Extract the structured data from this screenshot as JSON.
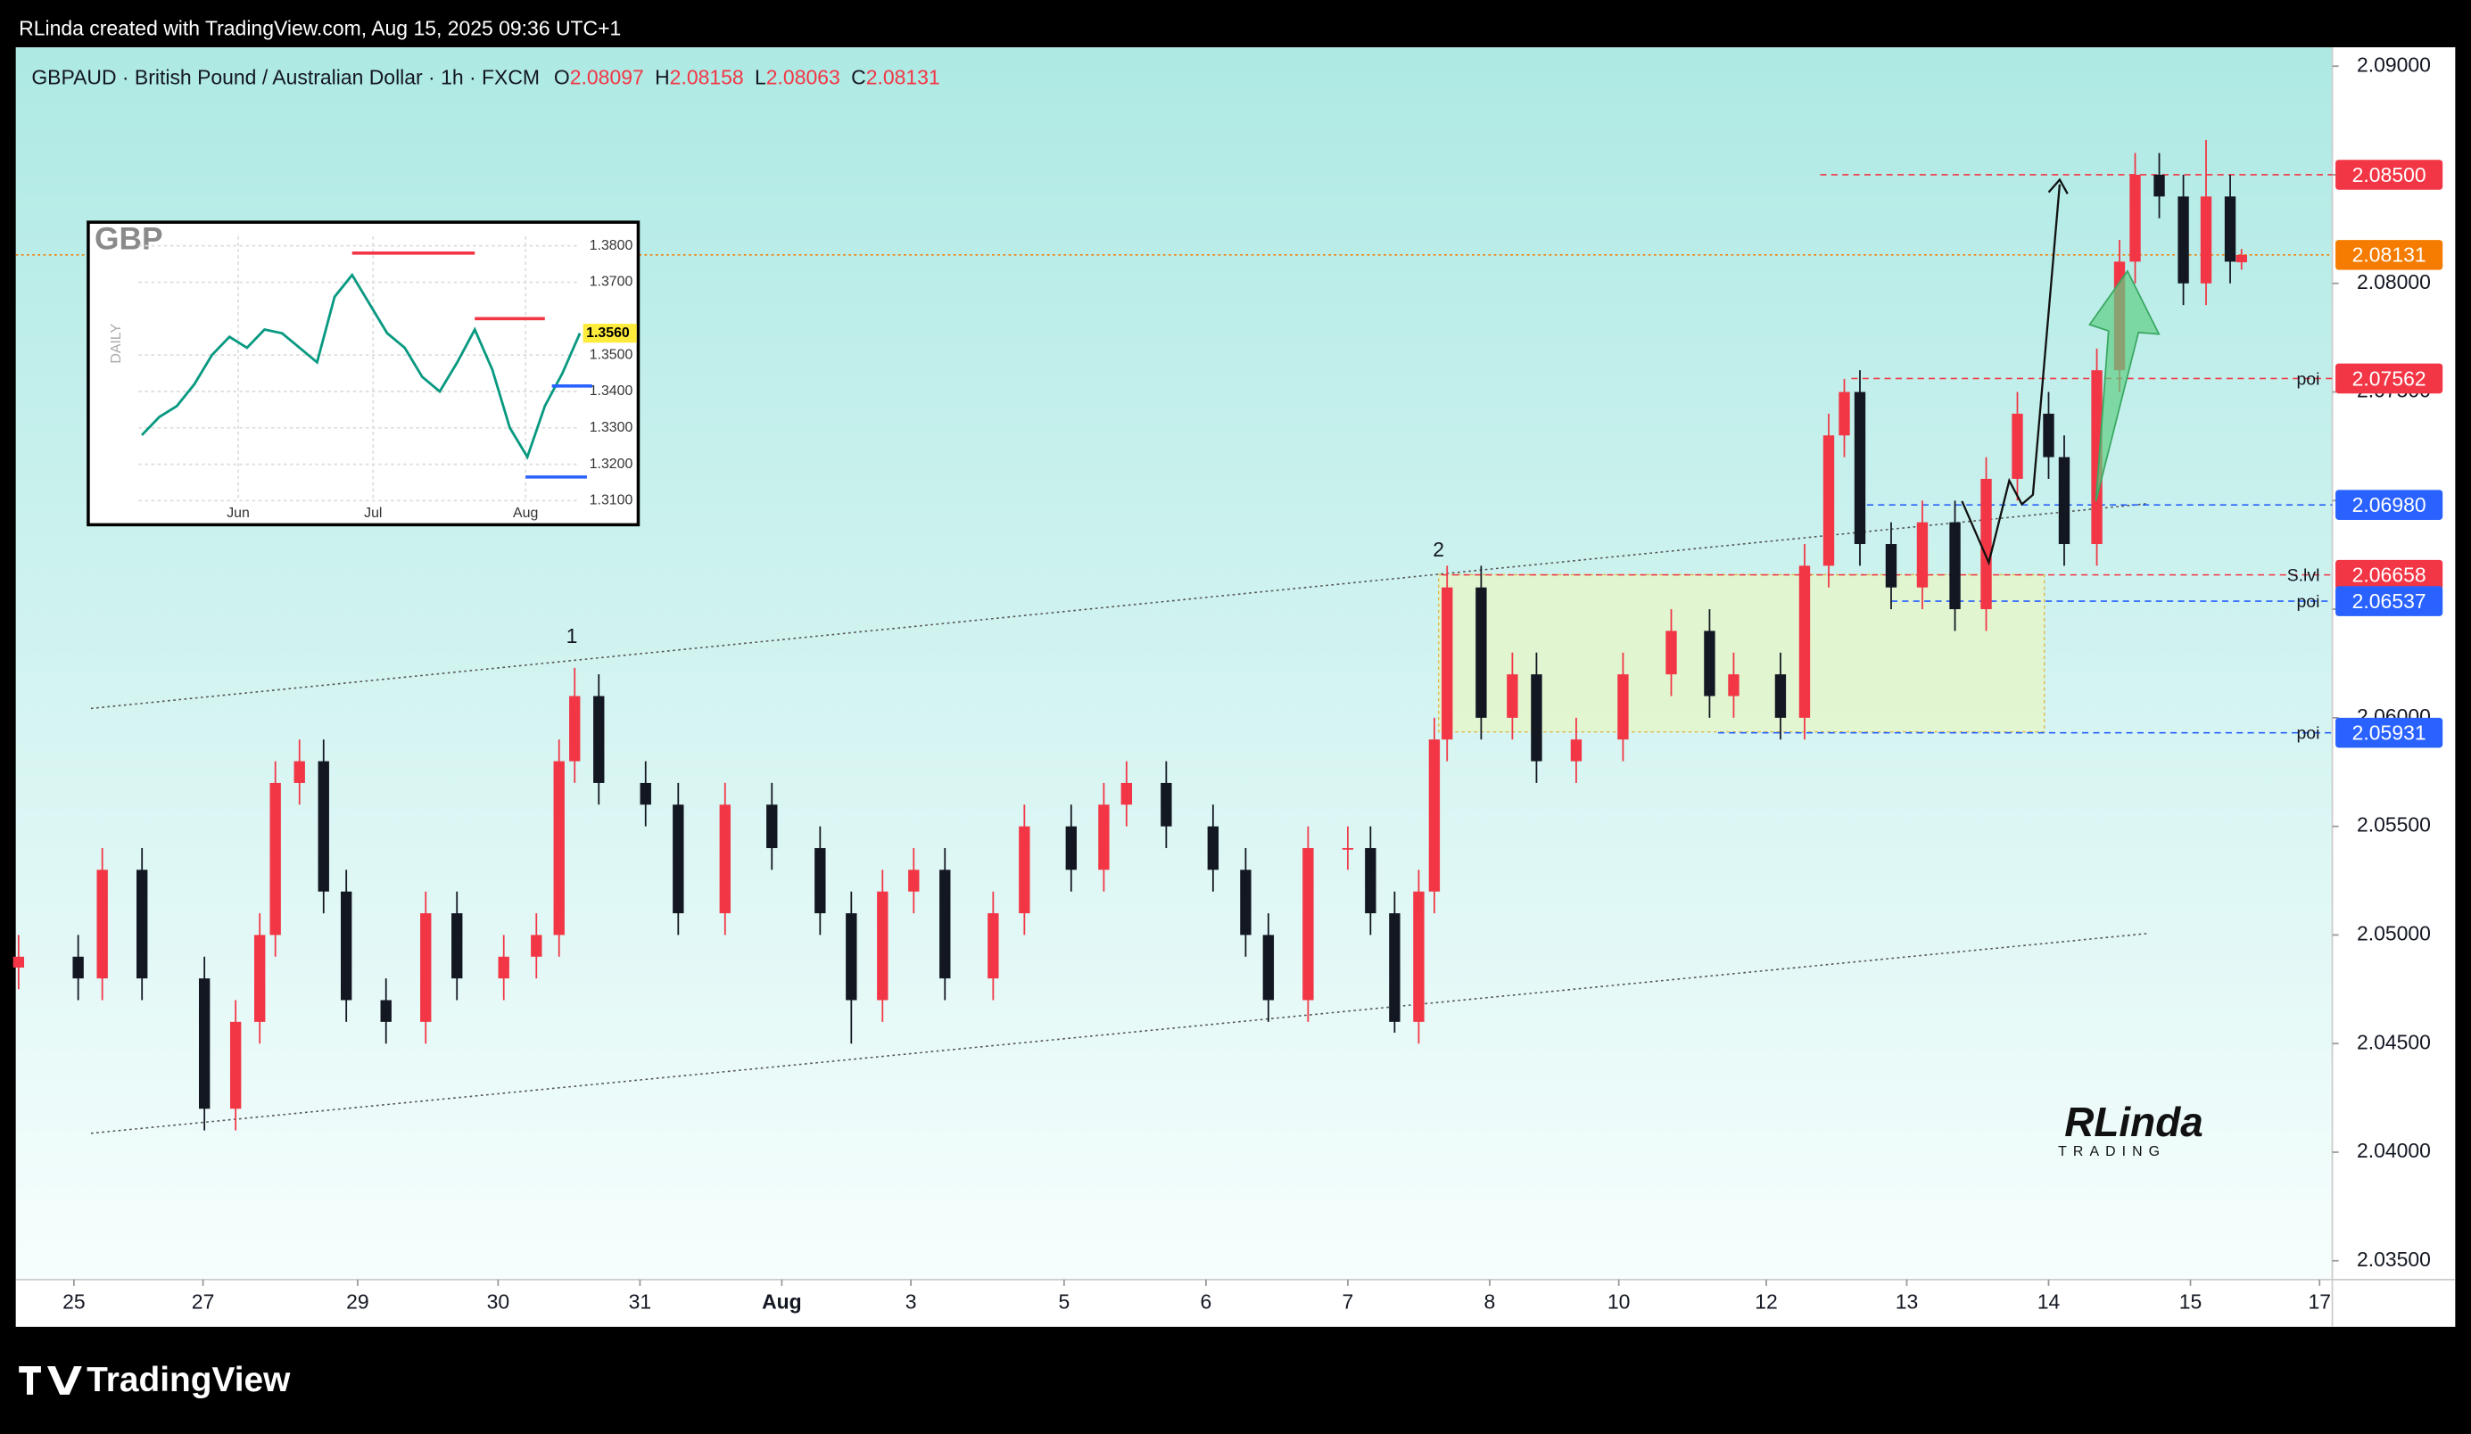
{
  "top_bar": "RLinda created with TradingView.com, Aug 15, 2025 09:36 UTC+1",
  "chart_data": {
    "type": "candlestick",
    "symbol": "GBPAUD · British Pound / Australian Dollar · 1h · FXCM",
    "legend_values": [
      {
        "key": "O",
        "value": "2.08097"
      },
      {
        "key": "H",
        "value": "2.08158"
      },
      {
        "key": "L",
        "value": "2.08063"
      },
      {
        "key": "C",
        "value": "2.08131"
      }
    ],
    "up_color": "#f23645",
    "down_color": "#131722",
    "x": [
      -0.39,
      0.03,
      0.2,
      0.48,
      0.92,
      1.14,
      1.31,
      1.42,
      1.59,
      1.76,
      1.92,
      2.2,
      2.48,
      2.7,
      3.03,
      3.26,
      3.42,
      3.53,
      3.7,
      4.03,
      4.26,
      4.59,
      4.92,
      5.26,
      5.48,
      5.7,
      5.92,
      6.14,
      6.48,
      6.7,
      7.03,
      7.26,
      7.42,
      7.7,
      8.03,
      8.26,
      8.42,
      8.7,
      8.98,
      9.14,
      9.31,
      9.48,
      9.59,
      9.68,
      9.92,
      10.14,
      10.31,
      10.59,
      10.92,
      11.26,
      11.53,
      11.7,
      12.03,
      12.2,
      12.37,
      12.48,
      12.59,
      12.81,
      13.03,
      13.26,
      13.48,
      13.7,
      13.92,
      14.03,
      14.26,
      14.42,
      14.53,
      14.7,
      14.87,
      15.03,
      15.2,
      15.28
    ],
    "open": [
      2.0485,
      2.049,
      2.048,
      2.053,
      2.048,
      2.042,
      2.046,
      2.05,
      2.057,
      2.058,
      2.052,
      2.047,
      2.046,
      2.051,
      2.048,
      2.049,
      2.05,
      2.058,
      2.061,
      2.057,
      2.056,
      2.051,
      2.056,
      2.054,
      2.051,
      2.047,
      2.052,
      2.053,
      2.048,
      2.051,
      2.055,
      2.053,
      2.056,
      2.057,
      2.055,
      2.053,
      2.05,
      2.047,
      2.054,
      2.054,
      2.051,
      2.046,
      2.052,
      2.059,
      2.066,
      2.06,
      2.062,
      2.058,
      2.059,
      2.062,
      2.064,
      2.061,
      2.062,
      2.06,
      2.067,
      2.073,
      2.075,
      2.068,
      2.066,
      2.069,
      2.065,
      2.071,
      2.074,
      2.072,
      2.068,
      2.076,
      2.081,
      2.085,
      2.084,
      2.08,
      2.084,
      2.08097
    ],
    "high": [
      2.05,
      2.05,
      2.054,
      2.054,
      2.049,
      2.047,
      2.051,
      2.058,
      2.059,
      2.059,
      2.053,
      2.048,
      2.052,
      2.052,
      2.05,
      2.051,
      2.059,
      2.0623,
      2.062,
      2.058,
      2.057,
      2.057,
      2.057,
      2.055,
      2.052,
      2.053,
      2.054,
      2.054,
      2.052,
      2.056,
      2.056,
      2.057,
      2.058,
      2.058,
      2.056,
      2.054,
      2.051,
      2.055,
      2.055,
      2.055,
      2.052,
      2.053,
      2.06,
      2.067,
      2.067,
      2.063,
      2.063,
      2.06,
      2.063,
      2.065,
      2.065,
      2.063,
      2.063,
      2.068,
      2.074,
      2.0756,
      2.076,
      2.069,
      2.07,
      2.07,
      2.072,
      2.075,
      2.075,
      2.073,
      2.077,
      2.082,
      2.086,
      2.086,
      2.085,
      2.0866,
      2.085,
      2.08158
    ],
    "low": [
      2.0475,
      2.047,
      2.047,
      2.047,
      2.041,
      2.041,
      2.045,
      2.049,
      2.056,
      2.051,
      2.046,
      2.045,
      2.045,
      2.047,
      2.047,
      2.048,
      2.049,
      2.057,
      2.056,
      2.055,
      2.05,
      2.05,
      2.053,
      2.05,
      2.045,
      2.046,
      2.051,
      2.047,
      2.047,
      2.05,
      2.052,
      2.052,
      2.055,
      2.054,
      2.052,
      2.049,
      2.046,
      2.046,
      2.053,
      2.05,
      2.0455,
      2.045,
      2.051,
      2.058,
      2.059,
      2.059,
      2.057,
      2.057,
      2.058,
      2.061,
      2.06,
      2.06,
      2.059,
      2.059,
      2.066,
      2.072,
      2.067,
      2.065,
      2.065,
      2.064,
      2.064,
      2.07,
      2.071,
      2.067,
      2.067,
      2.075,
      2.08,
      2.083,
      2.079,
      2.079,
      2.08,
      2.08063
    ],
    "close": [
      2.049,
      2.048,
      2.053,
      2.048,
      2.042,
      2.046,
      2.05,
      2.057,
      2.058,
      2.052,
      2.047,
      2.046,
      2.051,
      2.048,
      2.049,
      2.05,
      2.058,
      2.061,
      2.057,
      2.056,
      2.051,
      2.056,
      2.054,
      2.051,
      2.047,
      2.052,
      2.053,
      2.048,
      2.051,
      2.055,
      2.053,
      2.056,
      2.057,
      2.055,
      2.053,
      2.05,
      2.047,
      2.054,
      2.054,
      2.051,
      2.046,
      2.052,
      2.059,
      2.066,
      2.06,
      2.062,
      2.058,
      2.059,
      2.062,
      2.064,
      2.061,
      2.062,
      2.06,
      2.067,
      2.073,
      2.075,
      2.068,
      2.066,
      2.069,
      2.065,
      2.071,
      2.074,
      2.072,
      2.068,
      2.076,
      2.081,
      2.085,
      2.084,
      2.08,
      2.084,
      2.081,
      2.08131
    ],
    "xlim": [
      -0.41,
      15.92
    ],
    "xticks": [
      {
        "value": 0,
        "label": "25"
      },
      {
        "value": 0.91,
        "label": "27"
      },
      {
        "value": 2,
        "label": "29"
      },
      {
        "value": 2.99,
        "label": "30"
      },
      {
        "value": 3.99,
        "label": "31"
      },
      {
        "value": 4.99,
        "label": "Aug"
      },
      {
        "value": 5.9,
        "label": "3"
      },
      {
        "value": 6.98,
        "label": "5"
      },
      {
        "value": 7.98,
        "label": "6"
      },
      {
        "value": 8.98,
        "label": "7"
      },
      {
        "value": 9.98,
        "label": "8"
      },
      {
        "value": 10.89,
        "label": "10"
      },
      {
        "value": 11.93,
        "label": "12"
      },
      {
        "value": 12.92,
        "label": "13"
      },
      {
        "value": 13.92,
        "label": "14"
      },
      {
        "value": 14.92,
        "label": "15"
      },
      {
        "value": 15.83,
        "label": "17"
      }
    ],
    "ylim": [
      2.03428,
      2.09087
    ],
    "yticks": [
      {
        "value": 2.035,
        "label": "2.03500"
      },
      {
        "value": 2.04,
        "label": "2.04000"
      },
      {
        "value": 2.045,
        "label": "2.04500"
      },
      {
        "value": 2.05,
        "label": "2.05000"
      },
      {
        "value": 2.055,
        "label": "2.05500"
      },
      {
        "value": 2.06,
        "label": "2.06000"
      },
      {
        "value": 2.065,
        "label": "2.06500"
      },
      {
        "value": 2.07,
        "label": "2.07000"
      },
      {
        "value": 2.075,
        "label": "2.07500"
      },
      {
        "value": 2.08,
        "label": "2.08000"
      },
      {
        "value": 2.085,
        "label": "2.08500"
      },
      {
        "value": 2.09,
        "label": "2.09000"
      }
    ],
    "levels": [
      {
        "value": 2.085,
        "label": "2.08500",
        "color": "#f23645",
        "from": 12.31
      },
      {
        "value": 2.08131,
        "label": "2.08131",
        "color": "#f57c00",
        "from": -0.41
      },
      {
        "value": 2.07562,
        "label": "2.07562",
        "color": "#f23645",
        "from": 12.53,
        "note": "poi"
      },
      {
        "value": 2.0698,
        "label": "2.06980",
        "color": "#2962ff",
        "from": 12.64
      },
      {
        "value": 2.06658,
        "label": "2.06658",
        "color": "#f23645",
        "from": 9.64,
        "note": "S.lvl"
      },
      {
        "value": 2.06537,
        "label": "2.06537",
        "color": "#2962ff",
        "from": 12.81,
        "note": "poi"
      },
      {
        "value": 2.05931,
        "label": "2.05931",
        "color": "#2962ff",
        "from": 11.59,
        "note": "poi"
      }
    ],
    "channel": [
      {
        "x": [
          0.12,
          14.62
        ],
        "y": [
          2.04087,
          2.05007
        ]
      },
      {
        "x": [
          0.12,
          14.62
        ],
        "y": [
          2.06043,
          2.06986
        ]
      }
    ],
    "zone": {
      "x": [
        9.62,
        13.89
      ],
      "y": [
        2.05935,
        2.06659
      ]
    },
    "wave_labels": [
      {
        "text": "1",
        "x": 3.51,
        "y": 2.0637
      },
      {
        "text": "2",
        "x": 9.62,
        "y": 2.06768
      }
    ]
  },
  "inset": {
    "title": "GBP",
    "side_label": "DAILY",
    "color": "#089981",
    "values": [
      1.328,
      1.333,
      1.336,
      1.342,
      1.35,
      1.355,
      1.352,
      1.357,
      1.356,
      1.352,
      1.348,
      1.366,
      1.372,
      1.364,
      1.356,
      1.352,
      1.344,
      1.34,
      1.348,
      1.357,
      1.346,
      1.33,
      1.322,
      1.336,
      1.345,
      1.356
    ],
    "xlim": [
      0,
      25
    ],
    "ylim": [
      1.30641,
      1.38433
    ],
    "xticks": [
      {
        "value": 5.5,
        "label": "Jun"
      },
      {
        "value": 13.2,
        "label": "Jul"
      },
      {
        "value": 21.9,
        "label": "Aug"
      }
    ],
    "yticks": [
      {
        "value": 1.31,
        "label": "1.3100"
      },
      {
        "value": 1.32,
        "label": "1.3200"
      },
      {
        "value": 1.33,
        "label": "1.3300"
      },
      {
        "value": 1.34,
        "label": "1.3400"
      },
      {
        "value": 1.35,
        "label": "1.3500"
      },
      {
        "value": 1.37,
        "label": "1.3700"
      },
      {
        "value": 1.38,
        "label": "1.3800"
      }
    ],
    "current": {
      "value": 1.356,
      "label": "1.3560"
    },
    "levels": [
      {
        "value": 1.378,
        "from": 12,
        "to": 19,
        "color": "#f23645"
      },
      {
        "value": 1.36,
        "from": 19,
        "to": 23,
        "color": "#f23645"
      },
      {
        "value": 1.3415,
        "from": 23.4,
        "to": 25.7,
        "color": "#2962ff"
      },
      {
        "value": 1.3165,
        "from": 21.9,
        "to": 25.4,
        "color": "#2962ff"
      }
    ]
  },
  "logo": {
    "name": "RLinda",
    "tagline": "TRADING"
  },
  "footer": "TradingView"
}
